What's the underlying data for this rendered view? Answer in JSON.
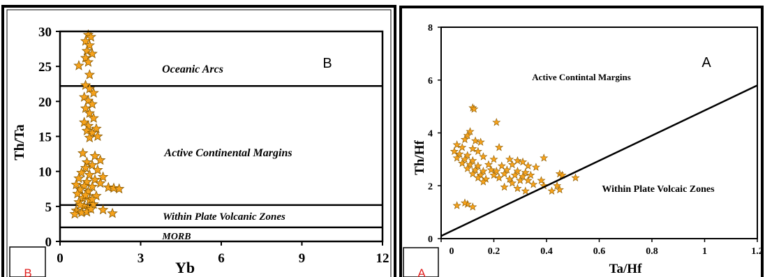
{
  "chart_data": [
    {
      "type": "scatter",
      "panel_label": "B",
      "corner_label": "B",
      "xlabel": "Yb",
      "ylabel": "Th/Ta",
      "xlim": [
        0,
        12
      ],
      "ylim": [
        0,
        30
      ],
      "x_ticks": [
        "0",
        "3",
        "6",
        "9",
        "12"
      ],
      "y_ticks": [
        "0",
        "5",
        "10",
        "15",
        "20",
        "25",
        "30"
      ],
      "boundaries": [
        22.2,
        5.2,
        2.0
      ],
      "regions": [
        "Oceanic Arcs",
        "Active Continental Margins",
        "Within Plate Volcanic Zones",
        "MORB"
      ],
      "marker_color": "#f6a21c",
      "points": [
        [
          1.05,
          29.5
        ],
        [
          1.15,
          29.2
        ],
        [
          0.95,
          28.6
        ],
        [
          1.1,
          28.0
        ],
        [
          1.0,
          27.2
        ],
        [
          1.2,
          26.8
        ],
        [
          0.95,
          26.2
        ],
        [
          1.05,
          25.6
        ],
        [
          0.7,
          25.1
        ],
        [
          1.1,
          23.8
        ],
        [
          0.95,
          22.3
        ],
        [
          1.1,
          21.8
        ],
        [
          1.25,
          21.2
        ],
        [
          0.9,
          20.6
        ],
        [
          1.05,
          20.1
        ],
        [
          1.2,
          19.6
        ],
        [
          0.95,
          19.0
        ],
        [
          1.1,
          18.3
        ],
        [
          1.25,
          17.6
        ],
        [
          0.9,
          17.0
        ],
        [
          1.05,
          16.5
        ],
        [
          1.35,
          16.1
        ],
        [
          1.0,
          15.8
        ],
        [
          1.2,
          15.5
        ],
        [
          1.4,
          15.0
        ],
        [
          1.1,
          14.8
        ],
        [
          0.85,
          12.6
        ],
        [
          1.3,
          12.2
        ],
        [
          1.5,
          11.6
        ],
        [
          1.0,
          11.3
        ],
        [
          1.2,
          10.9
        ],
        [
          0.95,
          10.5
        ],
        [
          1.4,
          10.2
        ],
        [
          0.8,
          9.8
        ],
        [
          1.1,
          9.5
        ],
        [
          1.6,
          9.2
        ],
        [
          0.7,
          9.0
        ],
        [
          1.3,
          8.8
        ],
        [
          1.0,
          8.5
        ],
        [
          1.5,
          8.3
        ],
        [
          0.6,
          8.1
        ],
        [
          0.9,
          7.9
        ],
        [
          1.2,
          7.8
        ],
        [
          1.8,
          7.7
        ],
        [
          2.0,
          7.6
        ],
        [
          2.2,
          7.5
        ],
        [
          0.75,
          7.4
        ],
        [
          1.05,
          7.1
        ],
        [
          0.65,
          6.8
        ],
        [
          1.35,
          6.5
        ],
        [
          0.85,
          6.2
        ],
        [
          1.1,
          5.9
        ],
        [
          0.7,
          5.6
        ],
        [
          1.25,
          5.3
        ],
        [
          0.9,
          5.0
        ],
        [
          1.05,
          4.7
        ],
        [
          0.6,
          4.4
        ],
        [
          1.6,
          4.5
        ],
        [
          1.95,
          4.0
        ],
        [
          0.55,
          3.9
        ],
        [
          0.8,
          4.1
        ],
        [
          1.0,
          4.2
        ],
        [
          1.2,
          6.0
        ],
        [
          0.75,
          5.2
        ],
        [
          0.95,
          6.6
        ],
        [
          1.15,
          4.6
        ]
      ]
    },
    {
      "type": "scatter",
      "panel_label": "A",
      "corner_label": "A",
      "xlabel": "Ta/Hf",
      "ylabel": "Th/Hf",
      "xlim": [
        0,
        1.2
      ],
      "ylim": [
        0,
        8
      ],
      "x_ticks": [
        "0",
        "0.2",
        "0.4",
        "0.6",
        "0.8",
        "1",
        "1.2"
      ],
      "y_ticks": [
        "0",
        "2",
        "4",
        "6",
        "8"
      ],
      "boundary_line": [
        [
          0,
          0.1
        ],
        [
          1.2,
          5.8
        ]
      ],
      "regions": [
        "Active Contintal Margins",
        "Within Plate Volcaic Zones"
      ],
      "marker_color": "#f6a21c",
      "points": [
        [
          0.12,
          4.95
        ],
        [
          0.125,
          4.9
        ],
        [
          0.21,
          4.4
        ],
        [
          0.11,
          4.05
        ],
        [
          0.1,
          3.9
        ],
        [
          0.09,
          3.75
        ],
        [
          0.13,
          3.7
        ],
        [
          0.15,
          3.65
        ],
        [
          0.06,
          3.55
        ],
        [
          0.08,
          3.45
        ],
        [
          0.12,
          3.4
        ],
        [
          0.14,
          3.3
        ],
        [
          0.05,
          3.3
        ],
        [
          0.07,
          3.2
        ],
        [
          0.1,
          3.15
        ],
        [
          0.16,
          3.1
        ],
        [
          0.22,
          3.45
        ],
        [
          0.06,
          3.05
        ],
        [
          0.09,
          3.0
        ],
        [
          0.12,
          2.95
        ],
        [
          0.2,
          3.0
        ],
        [
          0.26,
          3.0
        ],
        [
          0.29,
          2.95
        ],
        [
          0.31,
          2.9
        ],
        [
          0.39,
          3.05
        ],
        [
          0.08,
          2.85
        ],
        [
          0.11,
          2.8
        ],
        [
          0.14,
          2.75
        ],
        [
          0.18,
          2.8
        ],
        [
          0.23,
          2.75
        ],
        [
          0.27,
          2.8
        ],
        [
          0.33,
          2.75
        ],
        [
          0.36,
          2.7
        ],
        [
          0.1,
          2.65
        ],
        [
          0.13,
          2.6
        ],
        [
          0.16,
          2.55
        ],
        [
          0.19,
          2.6
        ],
        [
          0.21,
          2.55
        ],
        [
          0.25,
          2.6
        ],
        [
          0.29,
          2.55
        ],
        [
          0.32,
          2.5
        ],
        [
          0.12,
          2.45
        ],
        [
          0.15,
          2.4
        ],
        [
          0.2,
          2.4
        ],
        [
          0.24,
          2.45
        ],
        [
          0.28,
          2.4
        ],
        [
          0.31,
          2.35
        ],
        [
          0.34,
          2.4
        ],
        [
          0.45,
          2.45
        ],
        [
          0.46,
          2.4
        ],
        [
          0.14,
          2.3
        ],
        [
          0.17,
          2.25
        ],
        [
          0.22,
          2.3
        ],
        [
          0.26,
          2.25
        ],
        [
          0.3,
          2.2
        ],
        [
          0.33,
          2.2
        ],
        [
          0.38,
          2.2
        ],
        [
          0.51,
          2.3
        ],
        [
          0.16,
          2.15
        ],
        [
          0.27,
          2.1
        ],
        [
          0.35,
          2.05
        ],
        [
          0.39,
          2.0
        ],
        [
          0.44,
          2.0
        ],
        [
          0.24,
          1.95
        ],
        [
          0.29,
          1.9
        ],
        [
          0.32,
          1.8
        ],
        [
          0.42,
          1.8
        ],
        [
          0.45,
          1.85
        ],
        [
          0.06,
          1.25
        ],
        [
          0.1,
          1.3
        ],
        [
          0.12,
          1.2
        ],
        [
          0.09,
          1.35
        ]
      ]
    }
  ]
}
